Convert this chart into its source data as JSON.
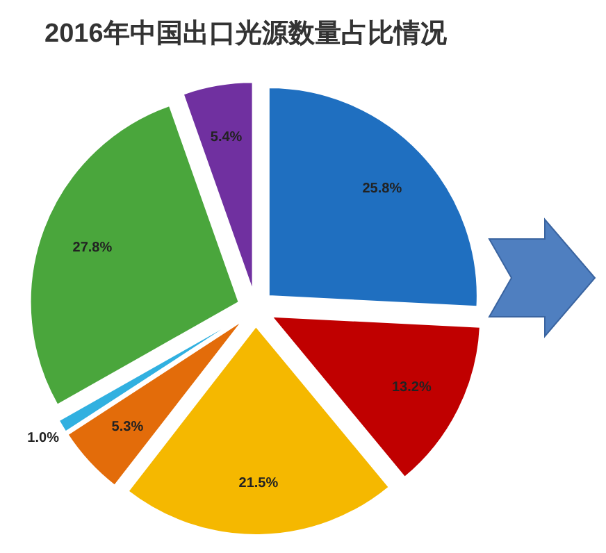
{
  "chart_data": {
    "type": "pie",
    "title": "2016年中国出口光源数量占比情况",
    "categories": [
      null,
      null,
      null,
      null,
      null,
      null,
      null
    ],
    "values": [
      25.8,
      13.2,
      21.5,
      5.3,
      1.0,
      27.8,
      5.4
    ],
    "value_labels": [
      "25.8%",
      "13.2%",
      "21.5%",
      "5.3%",
      "1.0%",
      "27.8%",
      "5.4%"
    ],
    "colors": [
      "#1f6fc0",
      "#c00000",
      "#f5b800",
      "#e36c0a",
      "#31b0e0",
      "#4aa63c",
      "#7030a0"
    ]
  }
}
